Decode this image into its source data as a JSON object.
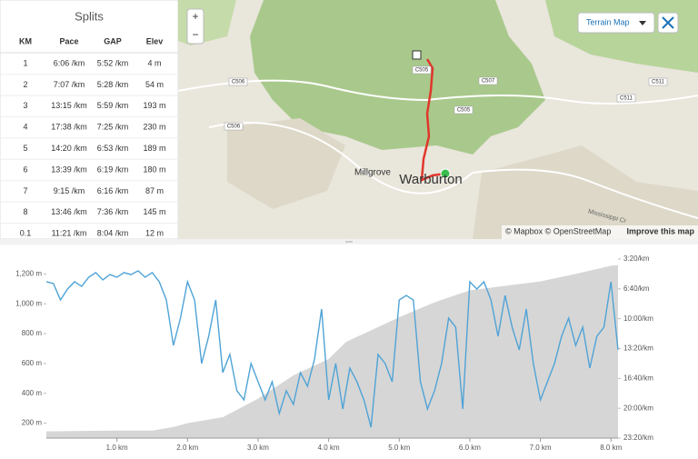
{
  "splits": {
    "title": "Splits",
    "headers": [
      "KM",
      "Pace",
      "GAP",
      "Elev"
    ],
    "rows": [
      [
        "1",
        "6:06 /km",
        "5:52 /km",
        "4 m"
      ],
      [
        "2",
        "7:07 /km",
        "5:28 /km",
        "54 m"
      ],
      [
        "3",
        "13:15 /km",
        "5:59 /km",
        "193 m"
      ],
      [
        "4",
        "17:38 /km",
        "7:25 /km",
        "230 m"
      ],
      [
        "5",
        "14:20 /km",
        "6:53 /km",
        "189 m"
      ],
      [
        "6",
        "13:39 /km",
        "6:19 /km",
        "180 m"
      ],
      [
        "7",
        "9:15 /km",
        "6:16 /km",
        "87 m"
      ],
      [
        "8",
        "13:46 /km",
        "7:36 /km",
        "145 m"
      ],
      [
        "0.1",
        "11:21 /km",
        "8:04 /km",
        "12 m"
      ]
    ]
  },
  "map": {
    "zoom_in": "+",
    "zoom_out": "−",
    "map_type": "Terrain Map",
    "labels": [
      "C505",
      "C505",
      "C506",
      "C506",
      "C507",
      "C511",
      "C511",
      "Millgrove",
      "Warburton",
      "Mississippi Cr"
    ],
    "attribution": "© Mapbox © OpenStreetMap",
    "improve": "Improve this map"
  },
  "chart_data": {
    "type": "combo",
    "xlim": [
      0,
      8.1
    ],
    "xticks": [
      {
        "value": 1,
        "label": "1.0 km"
      },
      {
        "value": 2,
        "label": "2.0 km"
      },
      {
        "value": 3,
        "label": "3.0 km"
      },
      {
        "value": 4,
        "label": "4.0 km"
      },
      {
        "value": 5,
        "label": "5.0 km"
      },
      {
        "value": 6,
        "label": "6.0 km"
      },
      {
        "value": 7,
        "label": "7.0 km"
      },
      {
        "value": 8,
        "label": "8.0 km"
      }
    ],
    "ylim": [
      100,
      1300
    ],
    "yticks": [
      {
        "value": 200,
        "label": "200 m"
      },
      {
        "value": 400,
        "label": "400 m"
      },
      {
        "value": 600,
        "label": "600 m"
      },
      {
        "value": 800,
        "label": "800 m"
      },
      {
        "value": 1000,
        "label": "1,000 m"
      },
      {
        "value": 1200,
        "label": "1,200 m"
      }
    ],
    "y2lim": [
      200,
      1400
    ],
    "y2_reversed": true,
    "y2ticks": [
      {
        "value": 200,
        "label": "3:20/km"
      },
      {
        "value": 400,
        "label": "6:40/km"
      },
      {
        "value": 600,
        "label": "10:00/km"
      },
      {
        "value": 800,
        "label": "13:20/km"
      },
      {
        "value": 1000,
        "label": "16:40/km"
      },
      {
        "value": 1200,
        "label": "20:00/km"
      },
      {
        "value": 1400,
        "label": "23:20/km"
      }
    ],
    "series": [
      {
        "name": "Elevation",
        "type": "area",
        "color": "#d6d6d6",
        "x": [
          0,
          0.5,
          1,
          1.5,
          1.8,
          2,
          2.5,
          3,
          3.5,
          4,
          4.25,
          4.5,
          5,
          5.5,
          6,
          6.5,
          7,
          7.5,
          8,
          8.1
        ],
        "values": [
          145,
          148,
          150,
          150,
          175,
          200,
          240,
          364,
          520,
          630,
          746,
          800,
          910,
          1010,
          1090,
          1120,
          1150,
          1200,
          1255,
          1260
        ]
      },
      {
        "name": "Pace",
        "type": "line",
        "axis": "y2",
        "color": "#4fa3d6",
        "x": [
          0,
          0.1,
          0.2,
          0.3,
          0.4,
          0.5,
          0.6,
          0.7,
          0.8,
          0.9,
          1,
          1.1,
          1.2,
          1.3,
          1.4,
          1.5,
          1.6,
          1.7,
          1.8,
          1.9,
          2,
          2.1,
          2.2,
          2.3,
          2.4,
          2.5,
          2.6,
          2.7,
          2.8,
          2.9,
          3,
          3.1,
          3.2,
          3.3,
          3.4,
          3.5,
          3.6,
          3.7,
          3.8,
          3.9,
          4,
          4.1,
          4.2,
          4.3,
          4.4,
          4.5,
          4.6,
          4.7,
          4.8,
          4.9,
          5,
          5.1,
          5.2,
          5.3,
          5.4,
          5.5,
          5.6,
          5.7,
          5.8,
          5.9,
          6,
          6.1,
          6.2,
          6.3,
          6.4,
          6.5,
          6.6,
          6.7,
          6.8,
          6.9,
          7,
          7.1,
          7.2,
          7.3,
          7.4,
          7.5,
          7.6,
          7.7,
          7.8,
          7.9,
          8,
          8.1
        ],
        "values": [
          352,
          364,
          474,
          401,
          352,
          383,
          322,
          291,
          340,
          304,
          322,
          291,
          304,
          279,
          322,
          291,
          352,
          474,
          779,
          596,
          352,
          474,
          900,
          718,
          474,
          961,
          839,
          1083,
          1144,
          900,
          1022,
          1144,
          1022,
          1235,
          1083,
          1174,
          961,
          1053,
          870,
          535,
          1144,
          900,
          1205,
          931,
          1022,
          1144,
          1327,
          839,
          900,
          1022,
          474,
          444,
          474,
          1022,
          1205,
          1083,
          900,
          596,
          657,
          1205,
          352,
          401,
          352,
          474,
          718,
          444,
          657,
          809,
          535,
          900,
          1144,
          1022,
          900,
          718,
          596,
          779,
          657,
          931,
          718,
          657,
          352,
          809
        ]
      }
    ]
  }
}
